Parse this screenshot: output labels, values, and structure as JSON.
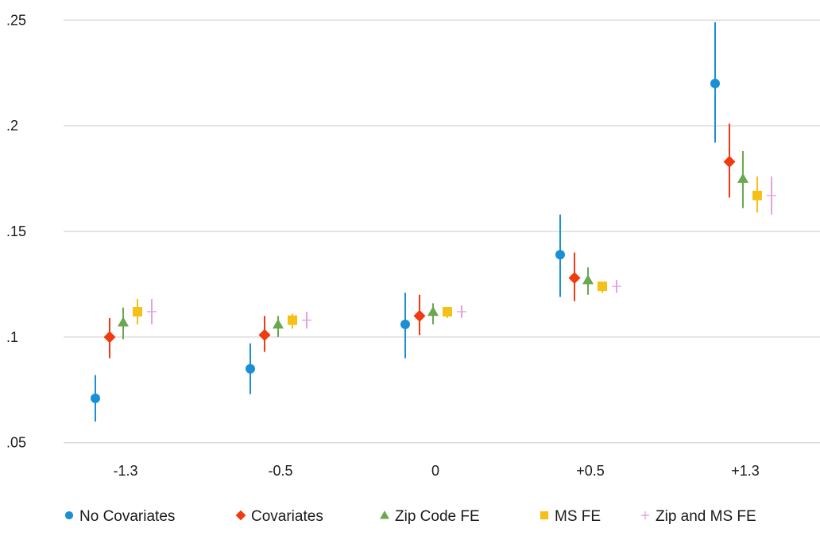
{
  "chart_data": {
    "type": "scatter",
    "subtype": "coefficient-plot-with-error-bars",
    "title": "",
    "xlabel": "",
    "ylabel": "",
    "categories": [
      "-1.3",
      "-0.5",
      "0",
      "+0.5",
      "+1.3"
    ],
    "ylim": [
      0.045,
      0.255
    ],
    "yticks": [
      0.05,
      0.1,
      0.15,
      0.2,
      0.25
    ],
    "ytick_labels": [
      ".05",
      ".1",
      ".15",
      ".2",
      ".25"
    ],
    "grid": "horizontal",
    "legend_position": "bottom",
    "series": [
      {
        "name": "No Covariates",
        "color": "#1a8fd6",
        "marker": "circle",
        "values": [
          0.071,
          0.085,
          0.106,
          0.139,
          0.22
        ],
        "ci_low": [
          0.06,
          0.073,
          0.09,
          0.119,
          0.192
        ],
        "ci_high": [
          0.082,
          0.097,
          0.121,
          0.158,
          0.249
        ]
      },
      {
        "name": "Covariates",
        "color": "#f03a0f",
        "marker": "diamond",
        "values": [
          0.1,
          0.101,
          0.11,
          0.128,
          0.183
        ],
        "ci_low": [
          0.09,
          0.093,
          0.101,
          0.117,
          0.166
        ],
        "ci_high": [
          0.109,
          0.11,
          0.12,
          0.14,
          0.201
        ]
      },
      {
        "name": "Zip Code FE",
        "color": "#6aa84f",
        "marker": "triangle",
        "values": [
          0.107,
          0.106,
          0.112,
          0.127,
          0.175
        ],
        "ci_low": [
          0.099,
          0.1,
          0.106,
          0.12,
          0.161
        ],
        "ci_high": [
          0.114,
          0.11,
          0.116,
          0.133,
          0.188
        ]
      },
      {
        "name": "MS FE",
        "color": "#f5c018",
        "marker": "square",
        "values": [
          0.112,
          0.108,
          0.112,
          0.124,
          0.167
        ],
        "ci_low": [
          0.106,
          0.104,
          0.109,
          0.121,
          0.159
        ],
        "ci_high": [
          0.118,
          0.111,
          0.114,
          0.126,
          0.176
        ]
      },
      {
        "name": "Zip and MS FE",
        "color": "#e6a0e6",
        "marker": "plus",
        "values": [
          0.112,
          0.108,
          0.112,
          0.124,
          0.167
        ],
        "ci_low": [
          0.106,
          0.104,
          0.109,
          0.121,
          0.158
        ],
        "ci_high": [
          0.118,
          0.112,
          0.115,
          0.127,
          0.176
        ]
      }
    ]
  },
  "colors": {
    "grid": "#d4d4d4",
    "text": "#1a1a1a",
    "background": "#ffffff"
  }
}
